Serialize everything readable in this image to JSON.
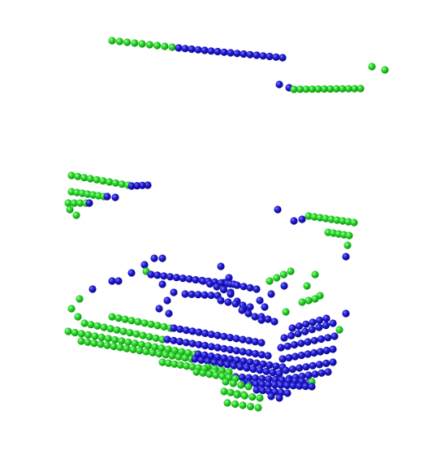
{
  "scene": {
    "background": "#ffffff",
    "classes": [
      {
        "key": "a",
        "color": "#1ccf1c",
        "highlight": "#7cff7c"
      },
      {
        "key": "b",
        "color": "#1a14c8",
        "highlight": "#5a5aff"
      }
    ]
  }
}
